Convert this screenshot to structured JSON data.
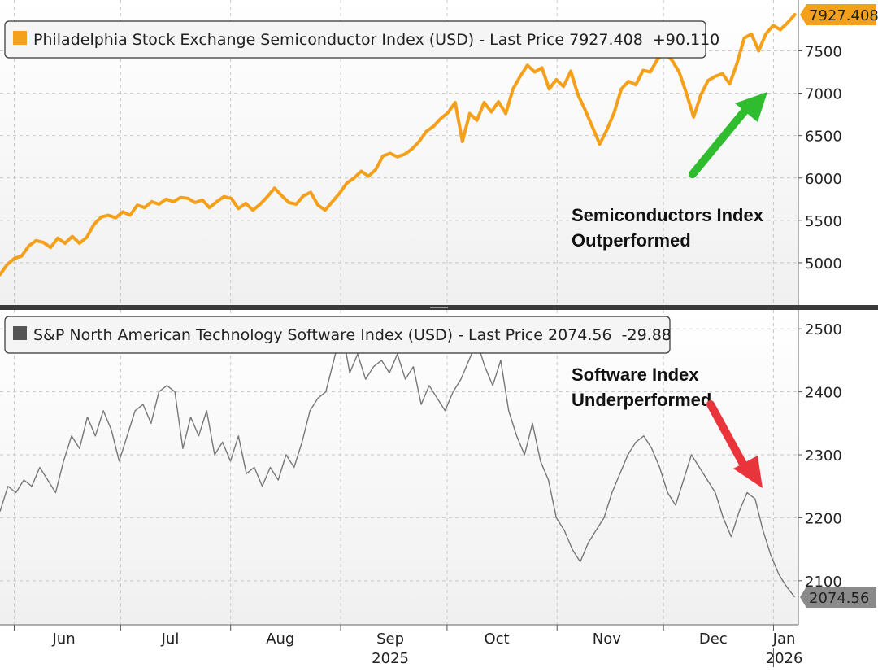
{
  "chart_data": [
    {
      "type": "line",
      "legend": {
        "label": "Philadelphia Stock Exchange Semiconductor Index (USD) - Last Price 7927.408  +90.110",
        "color": "#f5a01a",
        "placement": "top-left"
      },
      "last_price_tag": "7927.408",
      "ylim": [
        4500,
        8100
      ],
      "yticks": [
        5000,
        5500,
        6000,
        6500,
        7000,
        7500
      ],
      "grid": true,
      "annotation": {
        "line1": "Semiconductors Index",
        "line2": "Outperformed",
        "arrow": "up",
        "arrow_color": "#2fbd2f"
      },
      "series": [
        {
          "color": "#f5a01a",
          "x_start": "2025-05-28",
          "x_end": "2026-01-07",
          "values": [
            4860,
            4980,
            5050,
            5080,
            5200,
            5260,
            5240,
            5180,
            5290,
            5230,
            5310,
            5230,
            5300,
            5450,
            5540,
            5560,
            5530,
            5600,
            5560,
            5680,
            5650,
            5720,
            5690,
            5750,
            5720,
            5770,
            5760,
            5710,
            5740,
            5650,
            5720,
            5780,
            5760,
            5640,
            5700,
            5620,
            5690,
            5780,
            5880,
            5790,
            5710,
            5690,
            5790,
            5830,
            5680,
            5620,
            5720,
            5820,
            5940,
            6000,
            6080,
            6020,
            6100,
            6260,
            6290,
            6250,
            6280,
            6340,
            6430,
            6550,
            6610,
            6700,
            6770,
            6890,
            6430,
            6760,
            6680,
            6890,
            6780,
            6900,
            6760,
            7050,
            7200,
            7330,
            7250,
            7300,
            7050,
            7160,
            7080,
            7260,
            6980,
            6800,
            6600,
            6400,
            6570,
            6770,
            7050,
            7140,
            7100,
            7270,
            7250,
            7400,
            7480,
            7390,
            7250,
            7000,
            6720,
            6980,
            7150,
            7200,
            7230,
            7110,
            7350,
            7650,
            7700,
            7500,
            7700,
            7800,
            7750,
            7830,
            7927
          ]
        }
      ]
    },
    {
      "type": "line",
      "legend": {
        "label": "S&P North American Technology Software Index (USD) - Last Price 2074.56  -29.88",
        "color": "#555555",
        "placement": "top-left"
      },
      "last_price_tag": "2074.56",
      "ylim": [
        2030,
        2530
      ],
      "yticks": [
        2100,
        2200,
        2300,
        2400,
        2500
      ],
      "grid": true,
      "annotation": {
        "line1": "Software Index",
        "line2": "Underperformed",
        "arrow": "down",
        "arrow_color": "#e8343a"
      },
      "series": [
        {
          "color": "#777777",
          "x_start": "2025-05-28",
          "x_end": "2026-01-07",
          "values": [
            2210,
            2250,
            2240,
            2260,
            2250,
            2280,
            2260,
            2240,
            2290,
            2330,
            2310,
            2360,
            2330,
            2370,
            2340,
            2290,
            2330,
            2370,
            2380,
            2350,
            2400,
            2410,
            2400,
            2310,
            2360,
            2330,
            2370,
            2300,
            2320,
            2290,
            2330,
            2270,
            2280,
            2250,
            2280,
            2260,
            2300,
            2280,
            2320,
            2370,
            2390,
            2400,
            2450,
            2500,
            2430,
            2460,
            2420,
            2440,
            2450,
            2430,
            2460,
            2420,
            2440,
            2380,
            2410,
            2390,
            2370,
            2400,
            2420,
            2450,
            2480,
            2440,
            2410,
            2450,
            2370,
            2330,
            2300,
            2350,
            2290,
            2260,
            2200,
            2180,
            2150,
            2130,
            2160,
            2180,
            2200,
            2240,
            2270,
            2300,
            2320,
            2330,
            2310,
            2280,
            2240,
            2220,
            2260,
            2300,
            2280,
            2260,
            2240,
            2200,
            2170,
            2210,
            2240,
            2230,
            2180,
            2140,
            2110,
            2090,
            2074
          ]
        }
      ]
    }
  ],
  "x_axis": {
    "month_labels": [
      "Jun",
      "Jul",
      "Aug",
      "Sep",
      "Oct",
      "Nov",
      "Dec",
      "Jan"
    ],
    "month_dates": [
      "2025-06-15",
      "2025-07-15",
      "2025-08-15",
      "2025-09-15",
      "2025-10-15",
      "2025-11-15",
      "2025-12-15",
      "2026-01-04"
    ],
    "month_boundaries": [
      "2025-06-01",
      "2025-07-01",
      "2025-08-01",
      "2025-09-01",
      "2025-10-01",
      "2025-11-01",
      "2025-12-01",
      "2026-01-01"
    ],
    "year_labels": [
      {
        "text": "2025",
        "date": "2025-09-15"
      },
      {
        "text": "2026",
        "date": "2026-01-04"
      }
    ]
  }
}
